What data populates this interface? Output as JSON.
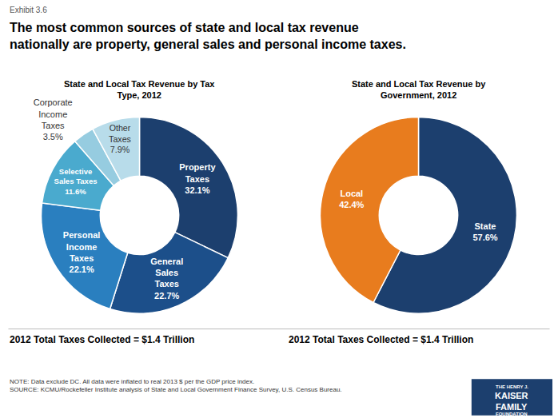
{
  "exhibit_label": "Exhibit 3.6",
  "title": "The most common sources of state and local tax revenue\nnationally are property, general sales and personal income taxes.",
  "chart_data": [
    {
      "type": "pie",
      "title": "State and Local Tax Revenue by Tax\nType, 2012",
      "values": [
        32.1,
        22.7,
        22.1,
        11.6,
        3.5,
        7.9
      ],
      "colors": [
        "#1c3f6e",
        "#1c4f8a",
        "#2a7fbf",
        "#4aaace",
        "#96cce0",
        "#b8dcea"
      ],
      "value_labels": [
        "Property\nTaxes\n32.1%",
        "General\nSales\nTaxes\n22.7%",
        "Personal\nIncome\nTaxes\n22.1%",
        "Selective\nSales Taxes\n11.6%",
        "Corporate\nIncome\nTaxes\n3.5%",
        "Other\nTaxes\n7.9%"
      ]
    },
    {
      "type": "pie",
      "title": "State and Local Tax Revenue by\nGovernment, 2012",
      "values": [
        57.6,
        42.4
      ],
      "colors": [
        "#1c3f6e",
        "#e87c1e"
      ],
      "value_labels": [
        "State\n57.6%",
        "Local\n42.4%"
      ]
    }
  ],
  "footer_left": "2012 Total Taxes Collected = $1.4 Trillion",
  "footer_right": "2012 Total Taxes Collected = $1.4 Trillion",
  "note": "NOTE: Data exclude DC. All data were inflated to real 2013 $ per the GDP price index.\nSOURCE: KCMU/Rockefeller Institute analysis of State and Local Government Finance Survey, U.S. Census Bureau.",
  "logo": [
    "THE HENRY J.",
    "KAISER",
    "FAMILY",
    "FOUNDATION"
  ]
}
